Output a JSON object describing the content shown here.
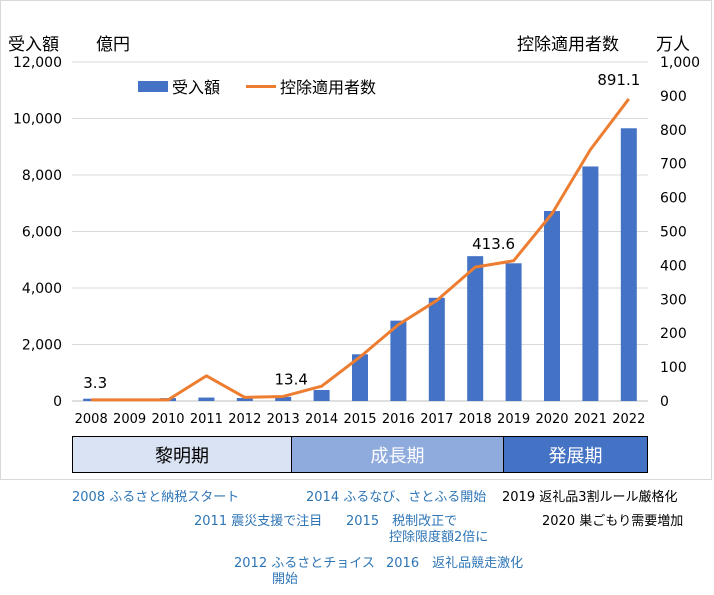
{
  "header": {
    "left_unit_a": "受入額",
    "left_unit_b": "億円",
    "right_unit_a": "控除適用者数",
    "right_unit_b": "万人"
  },
  "legend": {
    "bar_label": "受入額",
    "line_label": "控除適用者数"
  },
  "chart_data": {
    "type": "bar",
    "categories": [
      "2008",
      "2009",
      "2010",
      "2011",
      "2012",
      "2013",
      "2014",
      "2015",
      "2016",
      "2017",
      "2018",
      "2019",
      "2020",
      "2021",
      "2022"
    ],
    "series": [
      {
        "name": "受入額",
        "type": "bar",
        "axis": "left",
        "values": [
          81,
          77,
          102,
          122,
          104,
          146,
          389,
          1653,
          2844,
          3653,
          5127,
          4875,
          6725,
          8302,
          9654
        ]
      },
      {
        "name": "控除適用者数",
        "type": "line",
        "axis": "right",
        "values": [
          3.3,
          3.3,
          3.3,
          74.2,
          10.6,
          13.4,
          43.6,
          129.9,
          225.2,
          296.6,
          395.0,
          413.6,
          552.4,
          741.5,
          891.1
        ]
      }
    ],
    "y_left": {
      "min": 0,
      "max": 12000,
      "ticks": [
        "0",
        "2,000",
        "4,000",
        "6,000",
        "8,000",
        "10,000",
        "12,000"
      ]
    },
    "y_right": {
      "min": 0,
      "max": 1000,
      "ticks": [
        "0",
        "100",
        "200",
        "300",
        "400",
        "500",
        "600",
        "700",
        "800",
        "900",
        "1,000"
      ]
    },
    "data_labels": [
      {
        "series": 1,
        "index": 0,
        "text": "3.3"
      },
      {
        "series": 1,
        "index": 5,
        "text": "13.4"
      },
      {
        "series": 1,
        "index": 11,
        "text": "413.6"
      },
      {
        "series": 1,
        "index": 14,
        "text": "891.1"
      }
    ],
    "colors": {
      "bar": "#4472C4",
      "line": "#ED7D31"
    },
    "grid": true,
    "legend_position": "top-left"
  },
  "phases": [
    "黎明期",
    "成長期",
    "発展期"
  ],
  "notes": {
    "n2008": "2008 ふるさと納税スタート",
    "n2011": "2011 震災支援で注目",
    "n2012_l1": "2012 ふるさとチョイス",
    "n2012_l2": "開始",
    "n2014": "2014 ふるなび、さとふる開始",
    "n2015_l1": "2015　税制改正で",
    "n2015_l2": "控除限度額2倍に",
    "n2016": "2016　返礼品競走激化",
    "n2019": "2019 返礼品3割ルール厳格化",
    "n2020": "2020 巣ごもり需要増加"
  }
}
